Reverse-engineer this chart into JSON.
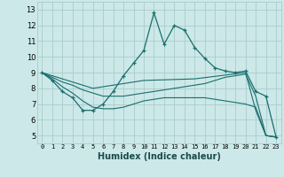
{
  "xlabel": "Humidex (Indice chaleur)",
  "bg_color": "#cce8e8",
  "grid_color": "#aacccc",
  "line_color": "#1a6e6e",
  "xlim": [
    -0.5,
    23.5
  ],
  "ylim": [
    4.5,
    13.5
  ],
  "xticks": [
    0,
    1,
    2,
    3,
    4,
    5,
    6,
    7,
    8,
    9,
    10,
    11,
    12,
    13,
    14,
    15,
    16,
    17,
    18,
    19,
    20,
    21,
    22,
    23
  ],
  "yticks": [
    5,
    6,
    7,
    8,
    9,
    10,
    11,
    12,
    13
  ],
  "series1_x": [
    0,
    1,
    2,
    3,
    4,
    5,
    6,
    7,
    8,
    9,
    10,
    11,
    12,
    13,
    14,
    15,
    16,
    17,
    18,
    19,
    20,
    21,
    22,
    23
  ],
  "series1_y": [
    9.0,
    8.5,
    7.8,
    7.4,
    6.6,
    6.6,
    7.0,
    7.8,
    8.8,
    9.6,
    10.4,
    12.8,
    10.8,
    12.0,
    11.7,
    10.6,
    9.9,
    9.3,
    9.1,
    9.0,
    9.1,
    7.8,
    7.5,
    4.9
  ],
  "series2_x": [
    0,
    1,
    2,
    3,
    4,
    5,
    6,
    7,
    8,
    9,
    10,
    11,
    12,
    13,
    14,
    15,
    16,
    17,
    18,
    19,
    20,
    21,
    22,
    23
  ],
  "series2_y": [
    9.0,
    8.7,
    8.4,
    8.2,
    7.9,
    7.7,
    7.5,
    7.5,
    7.5,
    7.6,
    7.7,
    7.8,
    7.9,
    8.0,
    8.1,
    8.2,
    8.3,
    8.5,
    8.7,
    8.8,
    8.9,
    7.5,
    5.0,
    4.9
  ],
  "series3_x": [
    0,
    1,
    2,
    3,
    4,
    5,
    6,
    7,
    8,
    9,
    10,
    11,
    12,
    13,
    14,
    15,
    16,
    17,
    18,
    19,
    20,
    21,
    22,
    23
  ],
  "series3_y": [
    9.0,
    8.6,
    8.1,
    7.7,
    7.2,
    6.8,
    6.7,
    6.7,
    6.8,
    7.0,
    7.2,
    7.3,
    7.4,
    7.4,
    7.4,
    7.4,
    7.4,
    7.3,
    7.2,
    7.1,
    7.0,
    6.8,
    5.0,
    4.9
  ],
  "series4_x": [
    0,
    5,
    10,
    15,
    20,
    21,
    22,
    23
  ],
  "series4_y": [
    9.0,
    8.0,
    8.5,
    8.6,
    9.0,
    6.6,
    5.0,
    4.9
  ]
}
